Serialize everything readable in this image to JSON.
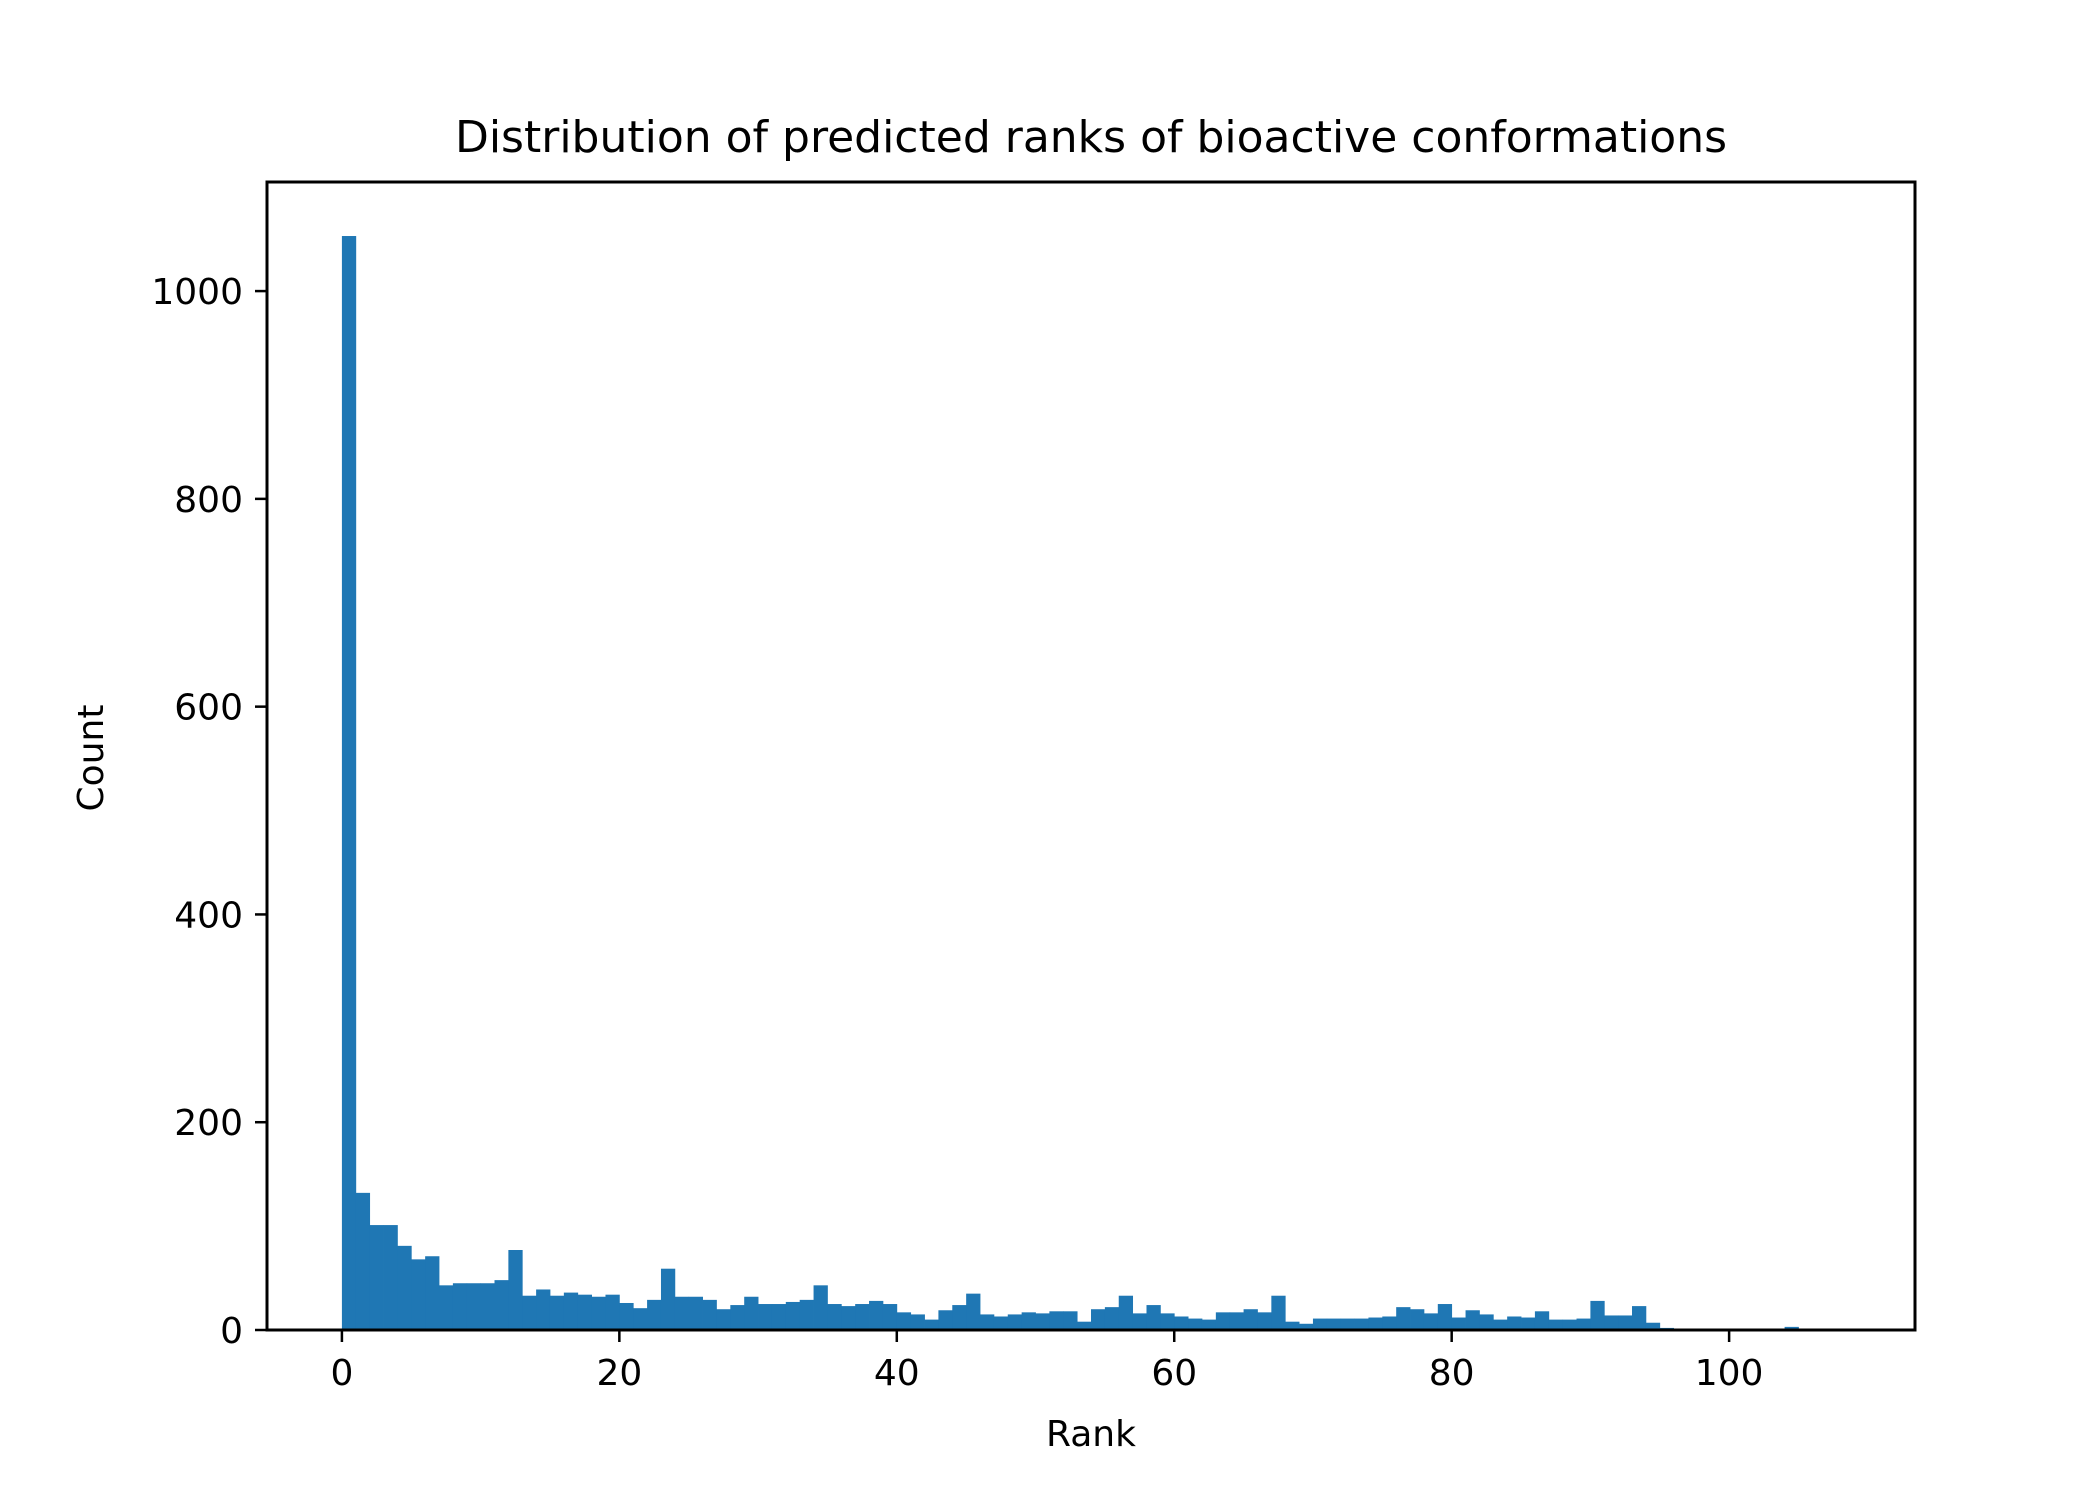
{
  "chart_data": {
    "type": "bar",
    "title": "Distribution of predicted ranks of bioactive conformations",
    "xlabel": "Rank",
    "ylabel": "Count",
    "xlim": [
      -5.4,
      113.4
    ],
    "ylim": [
      0,
      1105
    ],
    "xticks": [
      0,
      20,
      40,
      60,
      80,
      100
    ],
    "yticks": [
      0,
      200,
      400,
      600,
      800,
      1000
    ],
    "grid": false,
    "bar_color": "#1f77b4",
    "bin_start": 0,
    "bin_width": 1,
    "values": [
      1053,
      132,
      101,
      101,
      81,
      68,
      71,
      43,
      45,
      45,
      45,
      48,
      77,
      33,
      39,
      33,
      36,
      34,
      32,
      34,
      26,
      21,
      29,
      59,
      32,
      32,
      29,
      20,
      24,
      32,
      25,
      25,
      27,
      29,
      43,
      25,
      23,
      25,
      28,
      25,
      17,
      15,
      10,
      19,
      24,
      35,
      15,
      13,
      15,
      17,
      16,
      18,
      18,
      8,
      20,
      22,
      33,
      16,
      24,
      16,
      13,
      11,
      10,
      17,
      17,
      20,
      17,
      33,
      8,
      6,
      11,
      11,
      11,
      11,
      12,
      13,
      22,
      20,
      16,
      25,
      12,
      19,
      15,
      10,
      13,
      12,
      18,
      10,
      10,
      11,
      28,
      14,
      14,
      23,
      7,
      2,
      1,
      1,
      1,
      1,
      1,
      0,
      0,
      0,
      3,
      0
    ]
  }
}
